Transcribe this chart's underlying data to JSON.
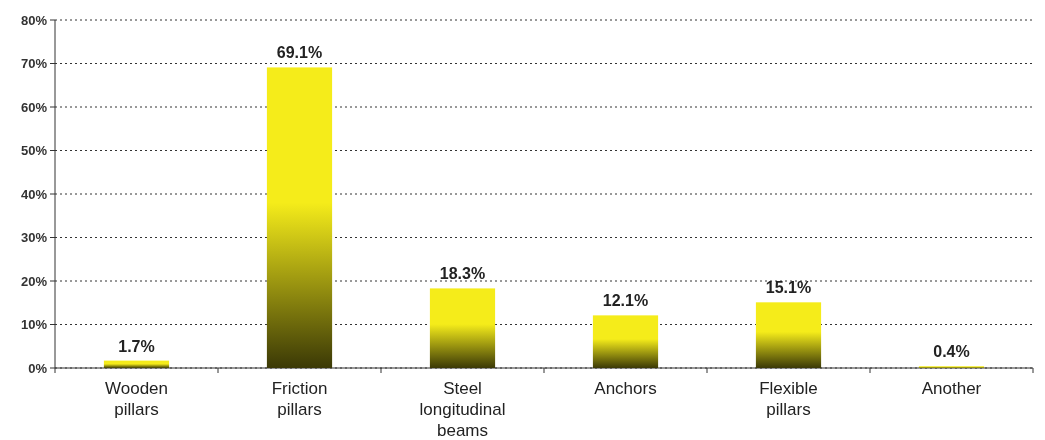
{
  "chart_data": {
    "type": "bar",
    "categories": [
      "Wooden pillars",
      "Friction pillars",
      "Steel longitudinal beams",
      "Anchors",
      "Flexible pillars",
      "Another"
    ],
    "values": [
      1.7,
      69.1,
      18.3,
      12.1,
      15.1,
      0.4
    ],
    "value_labels": [
      "1.7%",
      "69.1%",
      "18.3%",
      "12.1%",
      "15.1%",
      "0.4%"
    ],
    "color": "#f5ec1a",
    "ylim": [
      0,
      80
    ],
    "yticks": [
      {
        "value": 0,
        "label": "0%"
      },
      {
        "value": 10,
        "label": "10%"
      },
      {
        "value": 20,
        "label": "20%"
      },
      {
        "value": 30,
        "label": "30%"
      },
      {
        "value": 40,
        "label": "40%"
      },
      {
        "value": 50,
        "label": "50%"
      },
      {
        "value": 60,
        "label": "60%"
      },
      {
        "value": 70,
        "label": "70%"
      },
      {
        "value": 80,
        "label": "80%"
      }
    ],
    "grid": "y",
    "line_style": "dotted"
  }
}
